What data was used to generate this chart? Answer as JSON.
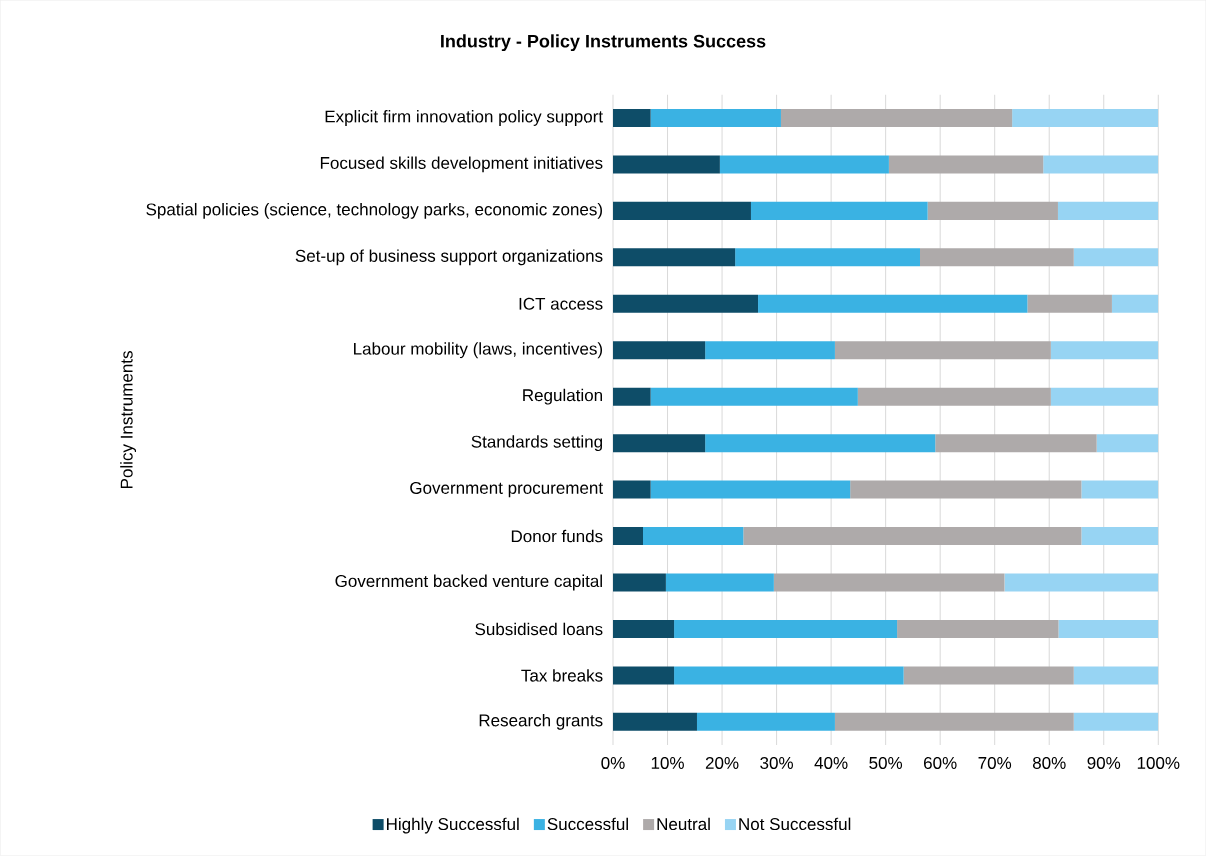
{
  "chart_data": {
    "type": "bar",
    "orientation": "horizontal",
    "stacked": true,
    "title": "Industry - Policy Instruments Success",
    "ylabel": "Policy Instruments",
    "categories": [
      "Explicit firm innovation policy support",
      "Focused skills development initiatives",
      "Spatial policies (science, technology parks, economic zones)",
      "Set-up of business support organizations",
      "ICT access",
      "Labour mobility (laws, incentives)",
      "Regulation",
      "Standards setting",
      "Government procurement",
      "Donor funds",
      "Government backed venture capital",
      "Subsidised loans",
      "Tax breaks",
      "Research grants"
    ],
    "series": [
      {
        "name": "Highly Successful",
        "color": "#0e4d68",
        "values": [
          6.9,
          19.6,
          25.3,
          22.4,
          26.6,
          16.9,
          6.9,
          16.9,
          6.9,
          5.5,
          9.7,
          11.2,
          11.2,
          15.4
        ]
      },
      {
        "name": "Successful",
        "color": "#3ab2e3",
        "values": [
          23.9,
          31.0,
          32.4,
          33.9,
          49.4,
          23.8,
          38.0,
          42.2,
          36.6,
          18.4,
          19.8,
          40.9,
          42.1,
          25.3
        ]
      },
      {
        "name": "Neutral",
        "color": "#aeaaaa",
        "values": [
          42.4,
          28.3,
          23.9,
          28.2,
          15.5,
          39.6,
          35.4,
          29.6,
          42.4,
          62.0,
          42.3,
          29.6,
          31.2,
          43.8
        ]
      },
      {
        "name": "Not Successful",
        "color": "#97d4f3",
        "values": [
          26.8,
          21.1,
          18.4,
          15.5,
          8.5,
          19.7,
          19.7,
          11.3,
          14.1,
          14.1,
          28.2,
          18.3,
          15.5,
          15.5
        ]
      }
    ],
    "xlim": [
      0,
      100
    ],
    "xticks": [
      {
        "value": 0,
        "label": "0%"
      },
      {
        "value": 10,
        "label": "10%"
      },
      {
        "value": 20,
        "label": "20%"
      },
      {
        "value": 30,
        "label": "30%"
      },
      {
        "value": 40,
        "label": "40%"
      },
      {
        "value": 50,
        "label": "50%"
      },
      {
        "value": 60,
        "label": "60%"
      },
      {
        "value": 70,
        "label": "70%"
      },
      {
        "value": 80,
        "label": "80%"
      },
      {
        "value": 90,
        "label": "90%"
      },
      {
        "value": 100,
        "label": "100%"
      }
    ],
    "grid": "x",
    "legend": "bottom"
  }
}
